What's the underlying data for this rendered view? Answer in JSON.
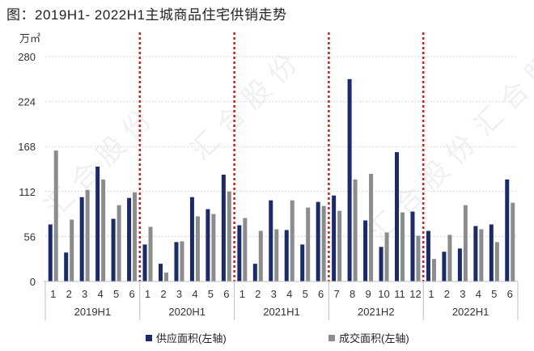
{
  "title": "图：2019H1- 2022H1主城商品住宅供销走势",
  "watermark_text": "汇 合 股 份",
  "chart_data": {
    "type": "bar",
    "ylabel": "万㎡",
    "ylim": [
      0,
      280
    ],
    "yticks": [
      0,
      56,
      112,
      168,
      224,
      280
    ],
    "grid": true,
    "legend_position": "bottom",
    "groups": [
      {
        "label": "2019H1",
        "months": [
          "1",
          "2",
          "3",
          "4",
          "5",
          "6"
        ]
      },
      {
        "label": "2020H1",
        "months": [
          "1",
          "2",
          "3",
          "4",
          "5",
          "6"
        ]
      },
      {
        "label": "2021H1",
        "months": [
          "1",
          "2",
          "3",
          "4",
          "5",
          "6"
        ]
      },
      {
        "label": "2021H2",
        "months": [
          "7",
          "8",
          "9",
          "10",
          "11",
          "12"
        ]
      },
      {
        "label": "2022H1",
        "months": [
          "1",
          "2",
          "3",
          "4",
          "5",
          "6"
        ]
      }
    ],
    "series": [
      {
        "name": "供应面积(左轴)",
        "color": "#1a2a6c",
        "values": [
          71,
          36,
          105,
          143,
          78,
          104,
          46,
          22,
          49,
          105,
          90,
          133,
          70,
          22,
          101,
          64,
          46,
          99,
          107,
          252,
          76,
          43,
          161,
          87,
          63,
          37,
          41,
          69,
          71,
          127
        ]
      },
      {
        "name": "成交面积(左轴)",
        "color": "#8c8c8c",
        "values": [
          163,
          77,
          114,
          127,
          95,
          111,
          68,
          11,
          50,
          81,
          84,
          112,
          79,
          63,
          65,
          101,
          92,
          94,
          88,
          127,
          134,
          61,
          86,
          57,
          28,
          58,
          95,
          65,
          49,
          98
        ]
      }
    ]
  }
}
